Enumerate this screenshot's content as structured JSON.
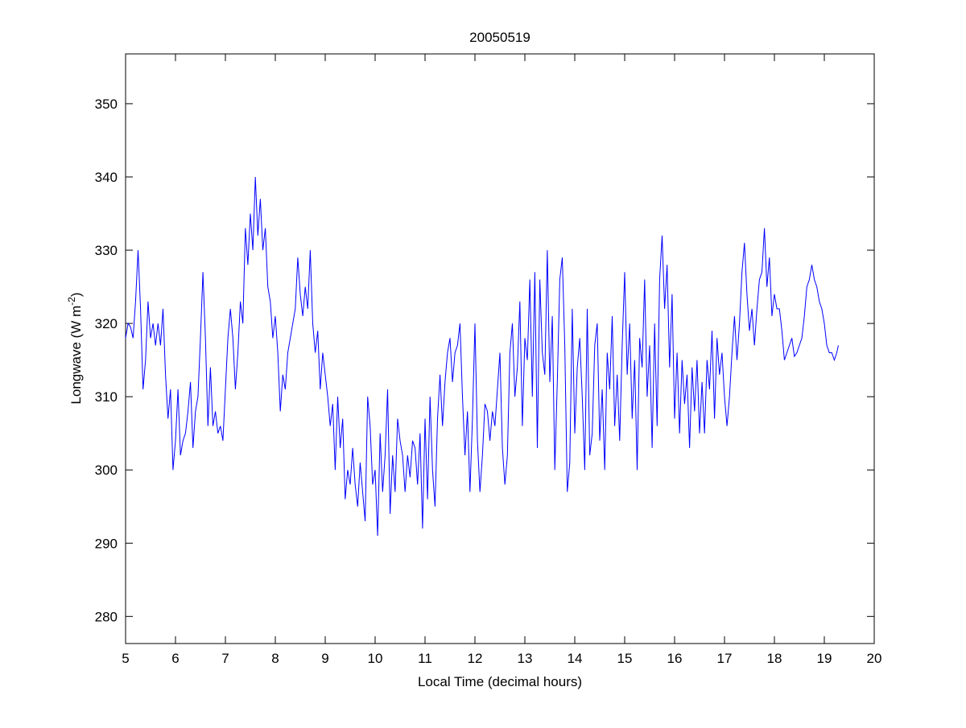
{
  "chart_data": {
    "type": "line",
    "title": "20050519",
    "xlabel": "Local Time (decimal hours)",
    "ylabel_main": "Longwave (W m",
    "ylabel_sup": "-2",
    "ylabel_close": ")",
    "xlim": [
      5,
      20
    ],
    "ylim": [
      276.3,
      356.8
    ],
    "xticks": [
      5,
      6,
      7,
      8,
      9,
      10,
      11,
      12,
      13,
      14,
      15,
      16,
      17,
      18,
      19,
      20
    ],
    "yticks": [
      280,
      290,
      300,
      310,
      320,
      330,
      340,
      350
    ],
    "grid": false,
    "line_color": "#0000ff",
    "series": [
      {
        "name": "Longwave",
        "x": [
          5.0,
          5.05,
          5.1,
          5.15,
          5.2,
          5.25,
          5.3,
          5.35,
          5.4,
          5.45,
          5.5,
          5.55,
          5.6,
          5.65,
          5.7,
          5.75,
          5.8,
          5.85,
          5.9,
          5.95,
          6.0,
          6.05,
          6.1,
          6.15,
          6.2,
          6.25,
          6.3,
          6.35,
          6.4,
          6.45,
          6.5,
          6.55,
          6.6,
          6.65,
          6.7,
          6.75,
          6.8,
          6.85,
          6.9,
          6.95,
          7.0,
          7.05,
          7.1,
          7.15,
          7.2,
          7.25,
          7.3,
          7.35,
          7.4,
          7.45,
          7.5,
          7.55,
          7.6,
          7.65,
          7.7,
          7.75,
          7.8,
          7.85,
          7.9,
          7.95,
          8.0,
          8.05,
          8.1,
          8.15,
          8.2,
          8.25,
          8.3,
          8.35,
          8.4,
          8.45,
          8.5,
          8.55,
          8.6,
          8.65,
          8.7,
          8.75,
          8.8,
          8.85,
          8.9,
          8.95,
          9.0,
          9.05,
          9.1,
          9.15,
          9.2,
          9.25,
          9.3,
          9.35,
          9.4,
          9.45,
          9.5,
          9.55,
          9.6,
          9.65,
          9.7,
          9.75,
          9.8,
          9.85,
          9.9,
          9.95,
          10.0,
          10.05,
          10.1,
          10.15,
          10.2,
          10.25,
          10.3,
          10.35,
          10.4,
          10.45,
          10.5,
          10.55,
          10.6,
          10.65,
          10.7,
          10.75,
          10.8,
          10.85,
          10.9,
          10.95,
          11.0,
          11.05,
          11.1,
          11.15,
          11.2,
          11.25,
          11.3,
          11.35,
          11.4,
          11.45,
          11.5,
          11.55,
          11.6,
          11.65,
          11.7,
          11.75,
          11.8,
          11.85,
          11.9,
          11.95,
          12.0,
          12.05,
          12.1,
          12.15,
          12.2,
          12.25,
          12.3,
          12.35,
          12.4,
          12.45,
          12.5,
          12.55,
          12.6,
          12.65,
          12.7,
          12.75,
          12.8,
          12.85,
          12.9,
          12.95,
          13.0,
          13.05,
          13.1,
          13.15,
          13.2,
          13.25,
          13.3,
          13.35,
          13.4,
          13.45,
          13.5,
          13.55,
          13.6,
          13.65,
          13.7,
          13.75,
          13.8,
          13.85,
          13.9,
          13.95,
          14.0,
          14.05,
          14.1,
          14.15,
          14.2,
          14.25,
          14.3,
          14.35,
          14.4,
          14.45,
          14.5,
          14.55,
          14.6,
          14.65,
          14.7,
          14.75,
          14.8,
          14.85,
          14.9,
          14.95,
          15.0,
          15.05,
          15.1,
          15.15,
          15.2,
          15.25,
          15.3,
          15.35,
          15.4,
          15.45,
          15.5,
          15.55,
          15.6,
          15.65,
          15.7,
          15.75,
          15.8,
          15.85,
          15.9,
          15.95,
          16.0,
          16.05,
          16.1,
          16.15,
          16.2,
          16.25,
          16.3,
          16.35,
          16.4,
          16.45,
          16.5,
          16.55,
          16.6,
          16.65,
          16.7,
          16.75,
          16.8,
          16.85,
          16.9,
          16.95,
          17.0,
          17.05,
          17.1,
          17.15,
          17.2,
          17.25,
          17.3,
          17.35,
          17.4,
          17.45,
          17.5,
          17.55,
          17.6,
          17.65,
          17.7,
          17.75,
          17.8,
          17.85,
          17.9,
          17.95,
          18.0,
          18.05,
          18.1,
          18.15,
          18.2,
          18.25,
          18.3,
          18.35,
          18.4,
          18.45,
          18.5,
          18.55,
          18.6,
          18.65,
          18.7,
          18.75,
          18.8,
          18.85,
          18.9,
          18.95,
          19.0,
          19.05,
          19.1,
          19.15,
          19.2,
          19.25,
          19.28
        ],
        "values": [
          318,
          320,
          319.5,
          318,
          323,
          330,
          322,
          311,
          315,
          323,
          318,
          320,
          317,
          320,
          317,
          322,
          313,
          307,
          311,
          300,
          304,
          311,
          302,
          304,
          305,
          308,
          312,
          303,
          308,
          310,
          318,
          327,
          318,
          306,
          314,
          306,
          308,
          305,
          306,
          304,
          311,
          318,
          322,
          318,
          311,
          316,
          323,
          320,
          333,
          328,
          335,
          330,
          340,
          332,
          337,
          330,
          333,
          325,
          323,
          318,
          321,
          316,
          308,
          313,
          311,
          316,
          318,
          320,
          322,
          329,
          324,
          321,
          325,
          322,
          330,
          320,
          316,
          319,
          311,
          316,
          313,
          310,
          306,
          309,
          300,
          310,
          303,
          307,
          296,
          300,
          298,
          303,
          298,
          295,
          301,
          297,
          293,
          310,
          306,
          298,
          300,
          291,
          305,
          297,
          302,
          311,
          294,
          302,
          297,
          307,
          304,
          302,
          297,
          302,
          299,
          304,
          303,
          298,
          305,
          292,
          307,
          296,
          310,
          300,
          295,
          307,
          313,
          306,
          312,
          316,
          318,
          312,
          316,
          317,
          320,
          310,
          302,
          308,
          297,
          307,
          320,
          304,
          297,
          302,
          309,
          308,
          304,
          308,
          306,
          311,
          316,
          303,
          298,
          302,
          316,
          320,
          310,
          314,
          323,
          306,
          318,
          315,
          326,
          310,
          327,
          303,
          326,
          316,
          313,
          330,
          312,
          321,
          300,
          312,
          326,
          329,
          317,
          297,
          301,
          322,
          305,
          314,
          318,
          310,
          300,
          322,
          302,
          305,
          317,
          320,
          304,
          311,
          300,
          316,
          311,
          321,
          306,
          313,
          304,
          317,
          327,
          313,
          320,
          307,
          315,
          300,
          318,
          314,
          326,
          310,
          317,
          303,
          320,
          306,
          326,
          332,
          322,
          328,
          314,
          324,
          307,
          316,
          305,
          315,
          309,
          313,
          303,
          314,
          308,
          315,
          305,
          312,
          305,
          315,
          311,
          319,
          307,
          318,
          313,
          316,
          310,
          306,
          310,
          316,
          321,
          315,
          320,
          327,
          331,
          324,
          319,
          322,
          317,
          322,
          326,
          327,
          333,
          325,
          329,
          321,
          324,
          322,
          322,
          319,
          315,
          316,
          317,
          318,
          315.5,
          316,
          317,
          318,
          321,
          325,
          326,
          328,
          326,
          325,
          323,
          322,
          320,
          317,
          316,
          316,
          315,
          316,
          317
        ]
      }
    ]
  }
}
